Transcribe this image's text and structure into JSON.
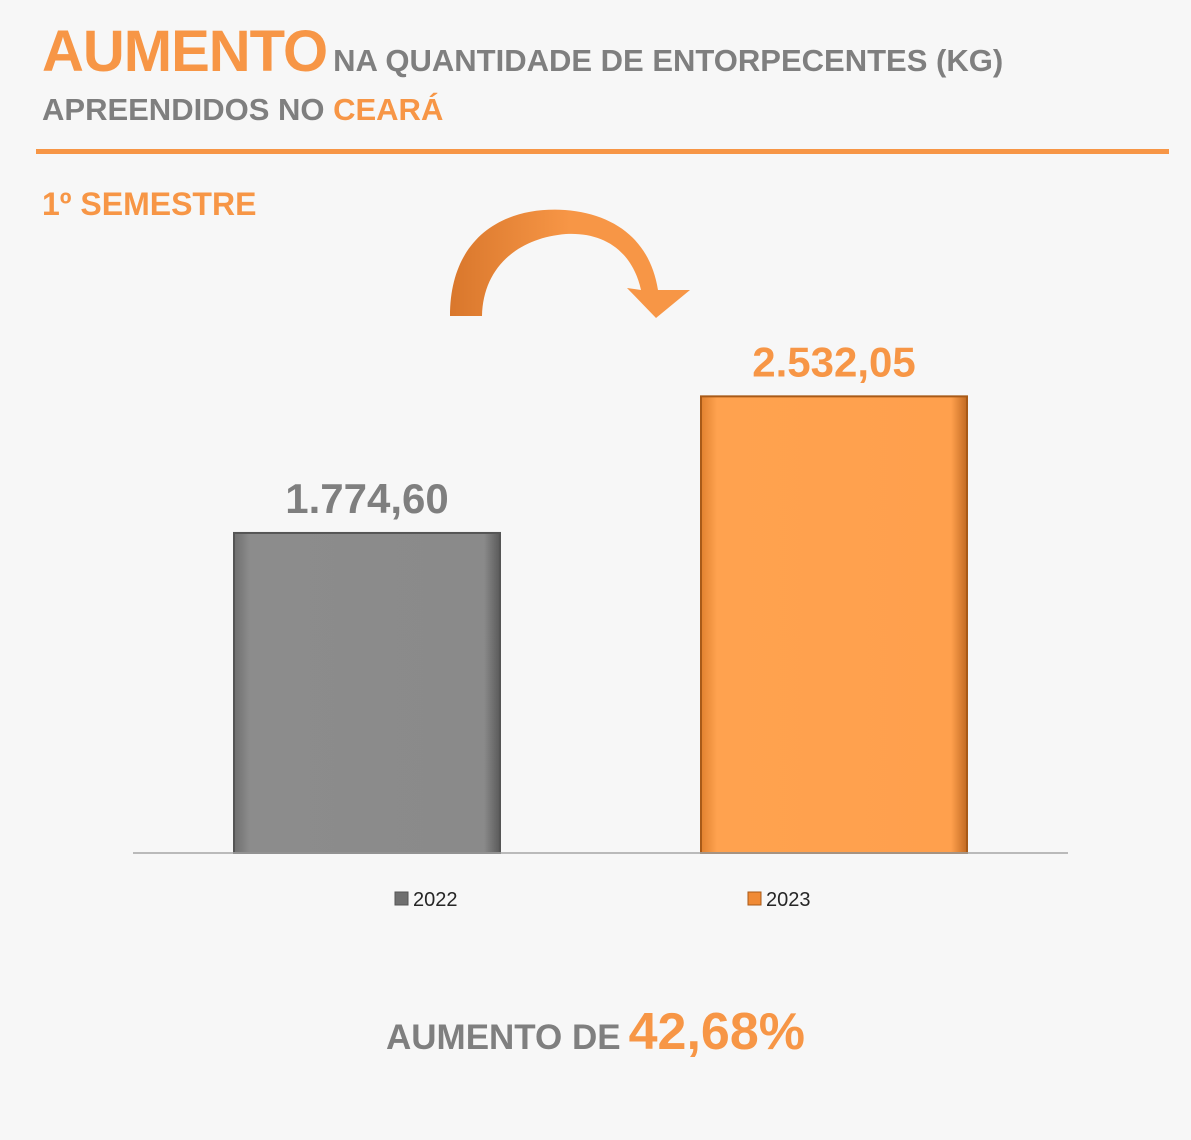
{
  "header": {
    "title_highlight": "AUMENTO",
    "title_rest": "NA QUANTIDADE DE ENTORPECENTES (KG)",
    "subtitle_prefix": "APREENDIDOS NO",
    "subtitle_highlight": "CEARÁ"
  },
  "semester_label": "1º SEMESTRE",
  "colors": {
    "accent": "#f79646",
    "gray_text": "#7f7f7f",
    "bar_2022": "#8a8a8a",
    "bar_2023": "#ffa04d"
  },
  "chart_data": {
    "type": "bar",
    "categories": [
      "2022",
      "2023"
    ],
    "values": [
      1774.6,
      2532.05
    ],
    "data_labels": [
      "1.774,60",
      "2.532,05"
    ],
    "legend": [
      "2022",
      "2023"
    ],
    "legend_position": "bottom",
    "ylim": [
      0,
      2900
    ],
    "grid": false,
    "annotation": "curved arrow from 2022 to 2023"
  },
  "footer": {
    "text": "AUMENTO DE",
    "value": "42,68%"
  }
}
